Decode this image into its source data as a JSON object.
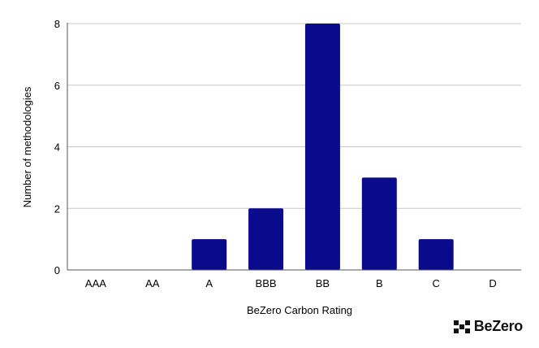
{
  "brand": {
    "logo_text": "BeZero",
    "logo_icon": "bezero-squares-icon"
  },
  "chart_data": {
    "type": "bar",
    "categories": [
      "AAA",
      "AA",
      "A",
      "BBB",
      "BB",
      "B",
      "C",
      "D"
    ],
    "values": [
      0,
      0,
      1,
      2,
      8,
      3,
      1,
      0
    ],
    "xlabel": "BeZero Carbon Rating",
    "ylabel": "Number of methodologies",
    "ylim": [
      0,
      8
    ],
    "yticks": [
      0,
      2,
      4,
      6,
      8
    ],
    "grid": true,
    "bar_color": "#0a0a8c",
    "legend": "none"
  }
}
